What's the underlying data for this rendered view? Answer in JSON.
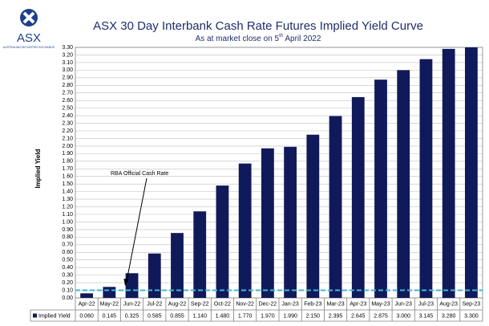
{
  "logo": {
    "name": "ASX",
    "tagline": "AUSTRALIAN SECURITIES EXCHANGE"
  },
  "chart_data": {
    "type": "bar",
    "title": "ASX 30 Day Interbank Cash Rate Futures Implied Yield Curve",
    "subtitle": [
      "As at market close on 5",
      "th",
      "April 2022"
    ],
    "y_label": "Implied Yield",
    "categories": [
      "Apr-22",
      "May-22",
      "Jun-22",
      "Jul-22",
      "Aug-22",
      "Sep-22",
      "Oct-22",
      "Nov-22",
      "Dec-22",
      "Jan-23",
      "Feb-23",
      "Mar-23",
      "Apr-23",
      "May-23",
      "Jun-23",
      "Jul-23",
      "Aug-23",
      "Sep-23"
    ],
    "series": [
      {
        "name": "Implied Yield",
        "color": "#101a5a",
        "values": [
          0.06,
          0.145,
          0.325,
          0.585,
          0.855,
          1.14,
          1.48,
          1.77,
          1.97,
          1.99,
          2.15,
          2.395,
          2.645,
          2.875,
          3.0,
          3.145,
          3.28,
          3.3
        ],
        "value_labels": [
          "0.060",
          "0.145",
          "0.325",
          "0.585",
          "0.855",
          "1.140",
          "1.480",
          "1.770",
          "1.970",
          "1.990",
          "2.150",
          "2.395",
          "2.645",
          "2.875",
          "3.000",
          "3.145",
          "3.280",
          "3.300"
        ]
      }
    ],
    "annotation": {
      "text": "RBA Official Cash Rate",
      "value": 0.1,
      "color": "#3fb7d8"
    },
    "ylim": [
      0,
      3.3
    ],
    "yticks": [
      {
        "value": 0,
        "label": "0.00"
      },
      {
        "value": 0.1,
        "label": "0.10"
      },
      {
        "value": 0.2,
        "label": "0.20"
      },
      {
        "value": 0.3,
        "label": "0.30"
      },
      {
        "value": 0.4,
        "label": "0.40"
      },
      {
        "value": 0.5,
        "label": "0.50"
      },
      {
        "value": 0.6,
        "label": "0.60"
      },
      {
        "value": 0.7,
        "label": "0.70"
      },
      {
        "value": 0.8,
        "label": "0.80"
      },
      {
        "value": 0.9,
        "label": "0.90"
      },
      {
        "value": 1,
        "label": "1.00"
      },
      {
        "value": 1.1,
        "label": "1.10"
      },
      {
        "value": 1.2,
        "label": "1.20"
      },
      {
        "value": 1.3,
        "label": "1.30"
      },
      {
        "value": 1.4,
        "label": "1.40"
      },
      {
        "value": 1.5,
        "label": "1.50"
      },
      {
        "value": 1.6,
        "label": "1.60"
      },
      {
        "value": 1.7,
        "label": "1.70"
      },
      {
        "value": 1.8,
        "label": "1.80"
      },
      {
        "value": 1.9,
        "label": "1.90"
      },
      {
        "value": 2,
        "label": "2.00"
      },
      {
        "value": 2.1,
        "label": "2.10"
      },
      {
        "value": 2.2,
        "label": "2.20"
      },
      {
        "value": 2.3,
        "label": "2.30"
      },
      {
        "value": 2.4,
        "label": "2.40"
      },
      {
        "value": 2.5,
        "label": "2.50"
      },
      {
        "value": 2.6,
        "label": "2.60"
      },
      {
        "value": 2.7,
        "label": "2.70"
      },
      {
        "value": 2.8,
        "label": "2.80"
      },
      {
        "value": 2.9,
        "label": "2.90"
      },
      {
        "value": 3,
        "label": "3.00"
      },
      {
        "value": 3.1,
        "label": "3.10"
      },
      {
        "value": 3.2,
        "label": "3.20"
      },
      {
        "value": 3.3,
        "label": "3.30"
      }
    ],
    "grid": true
  }
}
